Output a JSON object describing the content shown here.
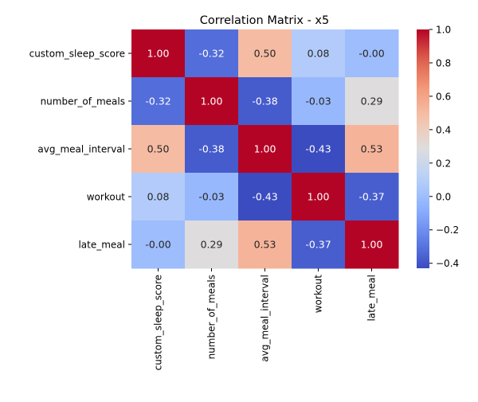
{
  "chart_data": {
    "type": "heatmap",
    "title": "Correlation Matrix - x5",
    "row_labels": [
      "custom_sleep_score",
      "number_of_meals",
      "avg_meal_interval",
      "workout",
      "late_meal"
    ],
    "col_labels": [
      "custom_sleep_score",
      "number_of_meals",
      "avg_meal_interval",
      "workout",
      "late_meal"
    ],
    "values": [
      [
        1.0,
        -0.32,
        0.5,
        0.08,
        -0.0
      ],
      [
        -0.32,
        1.0,
        -0.38,
        -0.03,
        0.29
      ],
      [
        0.5,
        -0.38,
        1.0,
        -0.43,
        0.53
      ],
      [
        0.08,
        -0.03,
        -0.43,
        1.0,
        -0.37
      ],
      [
        -0.0,
        0.29,
        0.53,
        -0.37,
        1.0
      ]
    ],
    "cell_labels": [
      [
        "1.00",
        "-0.32",
        "0.50",
        "0.08",
        "-0.00"
      ],
      [
        "-0.32",
        "1.00",
        "-0.38",
        "-0.03",
        "0.29"
      ],
      [
        "0.50",
        "-0.38",
        "1.00",
        "-0.43",
        "0.53"
      ],
      [
        "0.08",
        "-0.03",
        "-0.43",
        "1.00",
        "-0.37"
      ],
      [
        "-0.00",
        "0.29",
        "0.53",
        "-0.37",
        "1.00"
      ]
    ],
    "colormap": "coolwarm",
    "vmin": -0.43,
    "vmax": 1.0,
    "colorbar_ticks": [
      1.0,
      0.8,
      0.6,
      0.4,
      0.2,
      0.0,
      -0.2,
      -0.4
    ],
    "colorbar_tick_labels": [
      "1.0",
      "0.8",
      "0.6",
      "0.4",
      "0.2",
      "0.0",
      "−0.2",
      "−0.4"
    ],
    "colorbar_position": "right",
    "grid": false
  }
}
